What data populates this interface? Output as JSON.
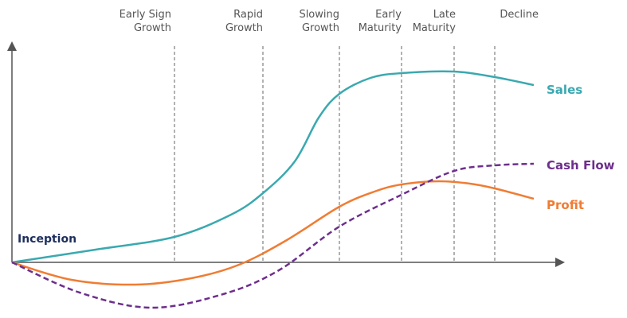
{
  "stages": [
    {
      "lines": [
        "Early Sign",
        "Growth"
      ]
    },
    {
      "lines": [
        "Rapid",
        "Growth"
      ]
    },
    {
      "lines": [
        "Slowing",
        "Growth"
      ]
    },
    {
      "lines": [
        "Early",
        "Maturity"
      ]
    },
    {
      "lines": [
        "Late",
        "Maturity"
      ]
    },
    {
      "lines": [
        "Decline"
      ]
    }
  ],
  "curves": {
    "sales": "Sales",
    "cash_flow": "Cash Flow",
    "profit": "Profit"
  },
  "inception": "Inception"
}
